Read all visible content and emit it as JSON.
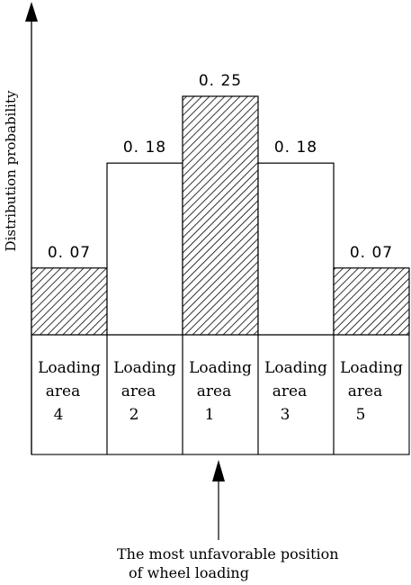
{
  "chart_data": {
    "type": "bar",
    "ylabel": "Distribution probability",
    "categories": [
      "Loading area 4",
      "Loading area 2",
      "Loading area 1",
      "Loading area 3",
      "Loading area 5"
    ],
    "category_lines": [
      [
        "Loading",
        "area",
        "4"
      ],
      [
        "Loading",
        "area",
        "2"
      ],
      [
        "Loading",
        "area",
        "1"
      ],
      [
        "Loading",
        "area",
        "3"
      ],
      [
        "Loading",
        "area",
        "5"
      ]
    ],
    "values": [
      0.07,
      0.18,
      0.25,
      0.18,
      0.07
    ],
    "value_labels": [
      "0. 07",
      "0. 18",
      "0. 25",
      "0. 18",
      "0. 07"
    ],
    "hatched": [
      true,
      false,
      true,
      false,
      true
    ],
    "ylim": [
      0,
      0.25
    ],
    "grid": false,
    "legend": "none"
  },
  "annotation": {
    "lines": [
      "The most unfavorable position",
      "of wheel loading"
    ],
    "points_to": "Loading area 1"
  }
}
